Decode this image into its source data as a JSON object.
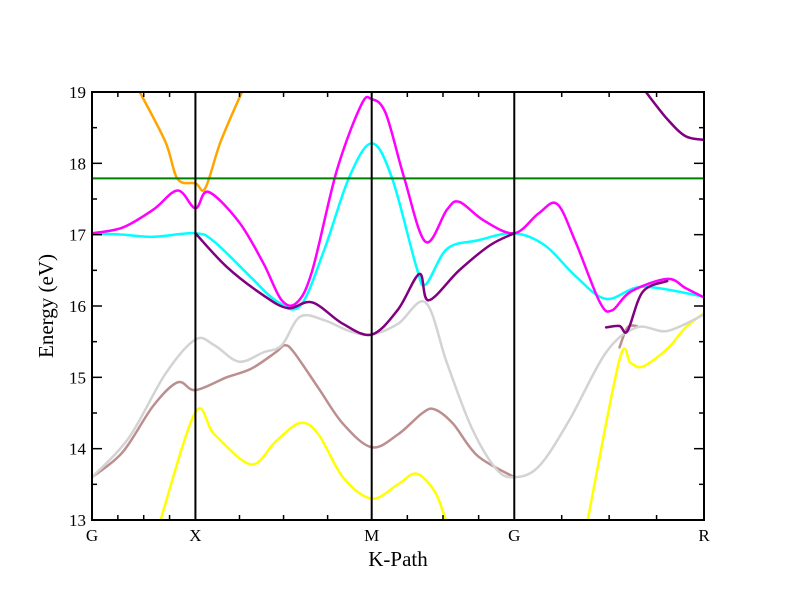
{
  "chart_data": {
    "type": "line",
    "title": "",
    "xlabel": "K-Path",
    "ylabel": "Energy (eV)",
    "ylim": [
      13,
      19
    ],
    "xlim": [
      0,
      1
    ],
    "yticks": [
      "13",
      "14",
      "15",
      "16",
      "17",
      "18",
      "19"
    ],
    "kpoints": [
      {
        "label": "G",
        "x": 0.0,
        "line": false
      },
      {
        "label": "X",
        "x": 0.169,
        "line": true
      },
      {
        "label": "M",
        "x": 0.457,
        "line": true
      },
      {
        "label": "G",
        "x": 0.69,
        "line": true
      },
      {
        "label": "R",
        "x": 1.0,
        "line": false
      }
    ],
    "fermi_level": {
      "y": 17.79,
      "color": "#008000"
    },
    "grid": false,
    "legend": "none",
    "series": [
      {
        "color": "#FFFF00",
        "points": [
          [
            0.112,
            13.0
          ],
          [
            0.169,
            14.51
          ],
          [
            0.2,
            14.2
          ],
          [
            0.26,
            13.78
          ],
          [
            0.3,
            14.1
          ],
          [
            0.34,
            14.36
          ],
          [
            0.37,
            14.2
          ],
          [
            0.41,
            13.6
          ],
          [
            0.457,
            13.3
          ],
          [
            0.5,
            13.5
          ],
          [
            0.53,
            13.65
          ],
          [
            0.56,
            13.4
          ],
          [
            0.578,
            13.0
          ]
        ]
      },
      {
        "color": "#FFFF00",
        "points": [
          [
            0.81,
            13.0
          ],
          [
            0.862,
            15.25
          ],
          [
            0.88,
            15.2
          ],
          [
            0.9,
            15.15
          ],
          [
            0.94,
            15.4
          ],
          [
            0.97,
            15.7
          ],
          [
            1.0,
            15.9
          ]
        ]
      },
      {
        "color": "#BC8F8F",
        "points": [
          [
            0.0,
            13.6
          ],
          [
            0.05,
            13.95
          ],
          [
            0.1,
            14.6
          ],
          [
            0.14,
            14.93
          ],
          [
            0.169,
            14.82
          ],
          [
            0.22,
            15.0
          ],
          [
            0.26,
            15.12
          ],
          [
            0.3,
            15.35
          ],
          [
            0.315,
            15.45
          ],
          [
            0.33,
            15.35
          ],
          [
            0.37,
            14.85
          ],
          [
            0.41,
            14.35
          ],
          [
            0.457,
            14.02
          ],
          [
            0.5,
            14.2
          ],
          [
            0.54,
            14.5
          ],
          [
            0.56,
            14.55
          ],
          [
            0.59,
            14.35
          ],
          [
            0.63,
            13.9
          ],
          [
            0.69,
            13.6
          ]
        ]
      },
      {
        "color": "#BC8F8F",
        "points": [
          [
            0.862,
            15.42
          ],
          [
            0.875,
            15.7
          ],
          [
            0.89,
            15.72
          ]
        ]
      },
      {
        "color": "#D3D3D3",
        "points": [
          [
            0.0,
            13.6
          ],
          [
            0.06,
            14.15
          ],
          [
            0.12,
            15.05
          ],
          [
            0.169,
            15.53
          ],
          [
            0.2,
            15.45
          ],
          [
            0.24,
            15.22
          ],
          [
            0.28,
            15.35
          ],
          [
            0.31,
            15.45
          ],
          [
            0.34,
            15.85
          ],
          [
            0.38,
            15.8
          ],
          [
            0.42,
            15.65
          ],
          [
            0.457,
            15.6
          ],
          [
            0.5,
            15.75
          ],
          [
            0.545,
            16.05
          ],
          [
            0.58,
            15.2
          ],
          [
            0.62,
            14.3
          ],
          [
            0.66,
            13.72
          ],
          [
            0.69,
            13.6
          ],
          [
            0.73,
            13.75
          ],
          [
            0.78,
            14.4
          ],
          [
            0.84,
            15.35
          ],
          [
            0.89,
            15.7
          ],
          [
            0.94,
            15.65
          ],
          [
            1.0,
            15.88
          ]
        ]
      },
      {
        "color": "#00FFFF",
        "points": [
          [
            0.0,
            17.02
          ],
          [
            0.05,
            17.0
          ],
          [
            0.1,
            16.97
          ],
          [
            0.169,
            17.02
          ],
          [
            0.2,
            16.9
          ],
          [
            0.26,
            16.4
          ],
          [
            0.3,
            16.08
          ],
          [
            0.34,
            16.0
          ],
          [
            0.38,
            16.8
          ],
          [
            0.42,
            17.8
          ],
          [
            0.457,
            18.28
          ],
          [
            0.49,
            17.8
          ],
          [
            0.53,
            16.55
          ],
          [
            0.545,
            16.3
          ],
          [
            0.58,
            16.8
          ],
          [
            0.63,
            16.92
          ],
          [
            0.69,
            17.02
          ],
          [
            0.74,
            16.85
          ],
          [
            0.79,
            16.42
          ],
          [
            0.84,
            16.1
          ],
          [
            0.9,
            16.27
          ],
          [
            1.0,
            16.13
          ]
        ]
      },
      {
        "color": "#FF00FF",
        "points": [
          [
            0.0,
            17.02
          ],
          [
            0.05,
            17.1
          ],
          [
            0.1,
            17.35
          ],
          [
            0.14,
            17.62
          ],
          [
            0.169,
            17.37
          ],
          [
            0.19,
            17.6
          ],
          [
            0.24,
            17.18
          ],
          [
            0.28,
            16.6
          ],
          [
            0.31,
            16.08
          ],
          [
            0.335,
            16.05
          ],
          [
            0.36,
            16.5
          ],
          [
            0.4,
            17.9
          ],
          [
            0.44,
            18.82
          ],
          [
            0.457,
            18.9
          ],
          [
            0.48,
            18.7
          ],
          [
            0.51,
            17.8
          ],
          [
            0.545,
            16.9
          ],
          [
            0.58,
            17.35
          ],
          [
            0.6,
            17.46
          ],
          [
            0.64,
            17.2
          ],
          [
            0.69,
            17.02
          ],
          [
            0.73,
            17.3
          ],
          [
            0.76,
            17.43
          ],
          [
            0.79,
            16.9
          ],
          [
            0.83,
            16.05
          ],
          [
            0.85,
            15.94
          ],
          [
            0.88,
            16.2
          ],
          [
            0.94,
            16.38
          ],
          [
            0.97,
            16.25
          ],
          [
            1.0,
            16.12
          ]
        ]
      },
      {
        "color": "#800080",
        "points": [
          [
            0.169,
            17.02
          ],
          [
            0.22,
            16.55
          ],
          [
            0.28,
            16.15
          ],
          [
            0.32,
            15.97
          ],
          [
            0.36,
            16.05
          ],
          [
            0.41,
            15.75
          ],
          [
            0.457,
            15.6
          ],
          [
            0.5,
            15.95
          ],
          [
            0.535,
            16.45
          ],
          [
            0.55,
            16.08
          ],
          [
            0.6,
            16.5
          ],
          [
            0.65,
            16.85
          ],
          [
            0.69,
            17.02
          ]
        ]
      },
      {
        "color": "#800080",
        "points": [
          [
            0.84,
            15.7
          ],
          [
            0.862,
            15.72
          ],
          [
            0.875,
            15.65
          ],
          [
            0.9,
            16.2
          ],
          [
            0.94,
            16.35
          ]
        ]
      },
      {
        "color": "#800080",
        "points": [
          [
            0.905,
            19.0
          ],
          [
            0.94,
            18.62
          ],
          [
            0.97,
            18.38
          ],
          [
            1.0,
            18.33
          ]
        ]
      },
      {
        "color": "#FFA500",
        "points": [
          [
            0.078,
            19.0
          ],
          [
            0.12,
            18.3
          ],
          [
            0.14,
            17.78
          ],
          [
            0.169,
            17.72
          ],
          [
            0.185,
            17.65
          ],
          [
            0.21,
            18.3
          ],
          [
            0.245,
            19.0
          ]
        ]
      }
    ]
  }
}
